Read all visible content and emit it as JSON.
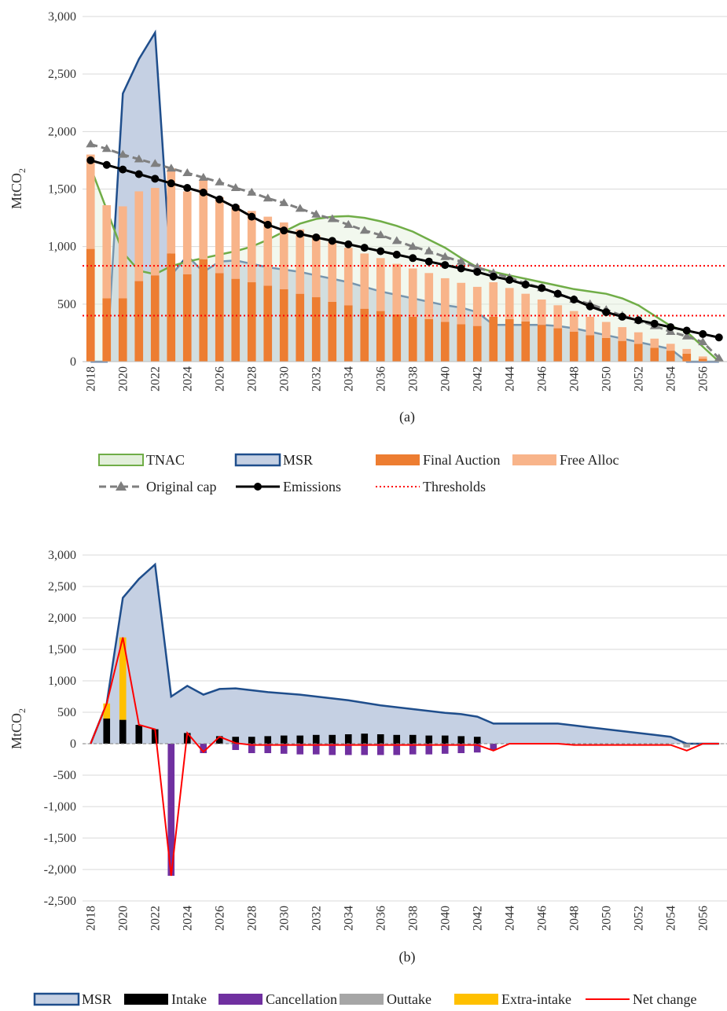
{
  "chart_data": [
    {
      "id": "a",
      "type": "combo",
      "caption": "(a)",
      "ylabel": "MtCO",
      "ylabel_sub": "2",
      "ylim": [
        0,
        3000
      ],
      "yticks": [
        0,
        500,
        1000,
        1500,
        2000,
        2500,
        3000
      ],
      "ytick_labels": [
        "0",
        "500",
        "1,000",
        "1,500",
        "2,000",
        "2,500",
        "3,000"
      ],
      "years": [
        2018,
        2019,
        2020,
        2021,
        2022,
        2023,
        2024,
        2025,
        2026,
        2027,
        2028,
        2029,
        2030,
        2031,
        2032,
        2033,
        2034,
        2035,
        2036,
        2037,
        2038,
        2039,
        2040,
        2041,
        2042,
        2043,
        2044,
        2045,
        2046,
        2047,
        2048,
        2049,
        2050,
        2051,
        2052,
        2053,
        2054,
        2055,
        2056,
        2057
      ],
      "xtick_labels": [
        "2018",
        "2020",
        "2022",
        "2024",
        "2026",
        "2028",
        "2030",
        "2032",
        "2034",
        "2036",
        "2038",
        "2040",
        "2042",
        "2044",
        "2046",
        "2048",
        "2050",
        "2052",
        "2054",
        "2056"
      ],
      "series": [
        {
          "name": "MSR",
          "kind": "area",
          "color": "#c5d0e3",
          "edge": "#1f4e8c",
          "values": [
            0,
            0,
            2330,
            2630,
            2860,
            750,
            920,
            780,
            870,
            880,
            850,
            820,
            800,
            780,
            750,
            720,
            690,
            650,
            610,
            580,
            550,
            520,
            490,
            470,
            430,
            320,
            320,
            320,
            320,
            310,
            290,
            260,
            230,
            200,
            170,
            140,
            110,
            0,
            0,
            0
          ]
        },
        {
          "name": "TNAC",
          "kind": "line",
          "color": "#70ad47",
          "values": [
            1690,
            1320,
            950,
            790,
            760,
            830,
            870,
            900,
            930,
            960,
            1000,
            1060,
            1130,
            1200,
            1240,
            1260,
            1265,
            1250,
            1220,
            1180,
            1130,
            1060,
            990,
            900,
            820,
            780,
            750,
            720,
            690,
            660,
            630,
            610,
            590,
            550,
            490,
            400,
            310,
            260,
            130,
            0
          ]
        },
        {
          "name": "Final Auction",
          "kind": "bar",
          "color": "#ed7d31",
          "values": [
            980,
            550,
            550,
            700,
            750,
            940,
            760,
            890,
            770,
            720,
            690,
            660,
            630,
            590,
            560,
            520,
            490,
            460,
            440,
            410,
            390,
            370,
            345,
            325,
            310,
            390,
            370,
            350,
            320,
            290,
            260,
            230,
            205,
            180,
            155,
            120,
            95,
            70,
            25,
            0
          ]
        },
        {
          "name": "Free Alloc",
          "kind": "bar",
          "color": "#f8b48a",
          "stack": "on Final Auction",
          "values": [
            820,
            810,
            800,
            780,
            760,
            740,
            720,
            690,
            660,
            640,
            620,
            600,
            580,
            560,
            540,
            520,
            500,
            480,
            460,
            440,
            420,
            400,
            380,
            360,
            340,
            300,
            270,
            240,
            220,
            200,
            180,
            160,
            140,
            120,
            100,
            80,
            60,
            40,
            20,
            0
          ]
        },
        {
          "name": "Original cap",
          "kind": "line",
          "color": "#7f7f7f",
          "marker": "triangle",
          "dash": true,
          "values": [
            1890,
            1850,
            1800,
            1760,
            1720,
            1680,
            1640,
            1600,
            1560,
            1510,
            1470,
            1420,
            1380,
            1330,
            1280,
            1240,
            1190,
            1140,
            1100,
            1050,
            1000,
            960,
            910,
            870,
            820,
            770,
            730,
            680,
            640,
            590,
            540,
            500,
            450,
            400,
            360,
            310,
            260,
            220,
            170,
            30
          ]
        },
        {
          "name": "Emissions",
          "kind": "line",
          "color": "#000000",
          "marker": "circle",
          "values": [
            1750,
            1710,
            1670,
            1630,
            1590,
            1550,
            1510,
            1470,
            1410,
            1340,
            1260,
            1190,
            1140,
            1110,
            1080,
            1050,
            1020,
            990,
            960,
            930,
            900,
            870,
            840,
            810,
            780,
            740,
            710,
            670,
            640,
            590,
            540,
            480,
            430,
            390,
            360,
            330,
            300,
            270,
            240,
            210
          ]
        },
        {
          "name": "Thresholds",
          "kind": "hline",
          "color": "#ff0000",
          "values": [
            833,
            400
          ]
        }
      ],
      "legend": [
        {
          "label": "TNAC",
          "swatch": "area-green"
        },
        {
          "label": "MSR",
          "swatch": "area-blue"
        },
        {
          "label": "Final Auction",
          "swatch": "bar-orange"
        },
        {
          "label": "Free Alloc",
          "swatch": "bar-peach"
        },
        {
          "label": "Original cap",
          "swatch": "dash-triangle"
        },
        {
          "label": "Emissions",
          "swatch": "line-circle"
        },
        {
          "label": "Thresholds",
          "swatch": "dotted-red"
        }
      ]
    },
    {
      "id": "b",
      "type": "combo",
      "caption": "(b)",
      "ylabel": "MtCO",
      "ylabel_sub": "2",
      "ylim": [
        -2500,
        3000
      ],
      "yticks": [
        -2500,
        -2000,
        -1500,
        -1000,
        -500,
        0,
        500,
        1000,
        1500,
        2000,
        2500,
        3000
      ],
      "ytick_labels": [
        "-2,500",
        "-2,000",
        "-1,500",
        "-1,000",
        "-500",
        "0",
        "500",
        "1,000",
        "1,500",
        "2,000",
        "2,500",
        "3,000"
      ],
      "years": [
        2018,
        2019,
        2020,
        2021,
        2022,
        2023,
        2024,
        2025,
        2026,
        2027,
        2028,
        2029,
        2030,
        2031,
        2032,
        2033,
        2034,
        2035,
        2036,
        2037,
        2038,
        2039,
        2040,
        2041,
        2042,
        2043,
        2044,
        2045,
        2046,
        2047,
        2048,
        2049,
        2050,
        2051,
        2052,
        2053,
        2054,
        2055,
        2056,
        2057
      ],
      "xtick_labels": [
        "2018",
        "2020",
        "2022",
        "2024",
        "2026",
        "2028",
        "2030",
        "2032",
        "2034",
        "2036",
        "2038",
        "2040",
        "2042",
        "2044",
        "2046",
        "2048",
        "2050",
        "2052",
        "2054",
        "2056"
      ],
      "series": [
        {
          "name": "MSR",
          "kind": "area",
          "color": "#c5d0e3",
          "edge": "#1f4e8c",
          "values": [
            0,
            640,
            2320,
            2620,
            2850,
            750,
            920,
            780,
            870,
            880,
            850,
            820,
            800,
            780,
            750,
            720,
            690,
            650,
            610,
            580,
            550,
            520,
            490,
            470,
            430,
            320,
            320,
            320,
            320,
            320,
            290,
            260,
            230,
            200,
            170,
            140,
            110,
            0,
            0,
            0
          ]
        },
        {
          "name": "Intake",
          "kind": "bar",
          "color": "#000000",
          "values": [
            0,
            400,
            380,
            300,
            230,
            0,
            170,
            0,
            120,
            110,
            110,
            120,
            130,
            130,
            140,
            140,
            150,
            160,
            150,
            140,
            140,
            130,
            130,
            120,
            110,
            0,
            0,
            0,
            0,
            0,
            0,
            0,
            0,
            0,
            0,
            0,
            0,
            0,
            0,
            0
          ]
        },
        {
          "name": "Cancellation",
          "kind": "bar",
          "color": "#7030a0",
          "values": [
            0,
            0,
            0,
            0,
            0,
            -2100,
            0,
            -150,
            0,
            -100,
            -150,
            -150,
            -160,
            -170,
            -170,
            -180,
            -180,
            -180,
            -180,
            -180,
            -170,
            -170,
            -160,
            -150,
            -140,
            -100,
            0,
            0,
            0,
            0,
            0,
            0,
            0,
            0,
            0,
            0,
            0,
            0,
            0,
            0
          ]
        },
        {
          "name": "Outtake",
          "kind": "bar",
          "color": "#a6a6a6",
          "values": [
            0,
            0,
            0,
            0,
            0,
            0,
            0,
            0,
            0,
            0,
            0,
            0,
            0,
            0,
            0,
            0,
            0,
            0,
            0,
            0,
            0,
            0,
            0,
            0,
            0,
            0,
            0,
            0,
            0,
            0,
            0,
            0,
            0,
            0,
            0,
            0,
            0,
            -60,
            0,
            0
          ]
        },
        {
          "name": "Extra-intake",
          "kind": "bar",
          "color": "#ffc000",
          "stack": "on Intake",
          "values": [
            0,
            240,
            1310,
            0,
            0,
            0,
            0,
            0,
            0,
            0,
            0,
            0,
            0,
            0,
            0,
            0,
            0,
            0,
            0,
            0,
            0,
            0,
            0,
            0,
            0,
            0,
            0,
            0,
            0,
            0,
            0,
            0,
            0,
            0,
            0,
            0,
            0,
            0,
            0,
            0
          ]
        },
        {
          "name": "Net change",
          "kind": "line",
          "color": "#ff0000",
          "values": [
            0,
            640,
            1690,
            300,
            230,
            -2100,
            170,
            -130,
            110,
            10,
            -20,
            -20,
            -20,
            -20,
            -20,
            -20,
            -20,
            -20,
            -20,
            -20,
            -20,
            -20,
            -20,
            -20,
            -20,
            -110,
            0,
            0,
            0,
            0,
            -20,
            -20,
            -20,
            -20,
            -20,
            -20,
            -20,
            -110,
            0,
            0
          ]
        }
      ],
      "legend": [
        {
          "label": "MSR",
          "swatch": "area-blue"
        },
        {
          "label": "Intake",
          "swatch": "bar-black"
        },
        {
          "label": "Cancellation",
          "swatch": "bar-purple"
        },
        {
          "label": "Outtake",
          "swatch": "bar-grey"
        },
        {
          "label": "Extra-intake",
          "swatch": "bar-yellow"
        },
        {
          "label": "Net change",
          "swatch": "line-red"
        }
      ]
    }
  ]
}
